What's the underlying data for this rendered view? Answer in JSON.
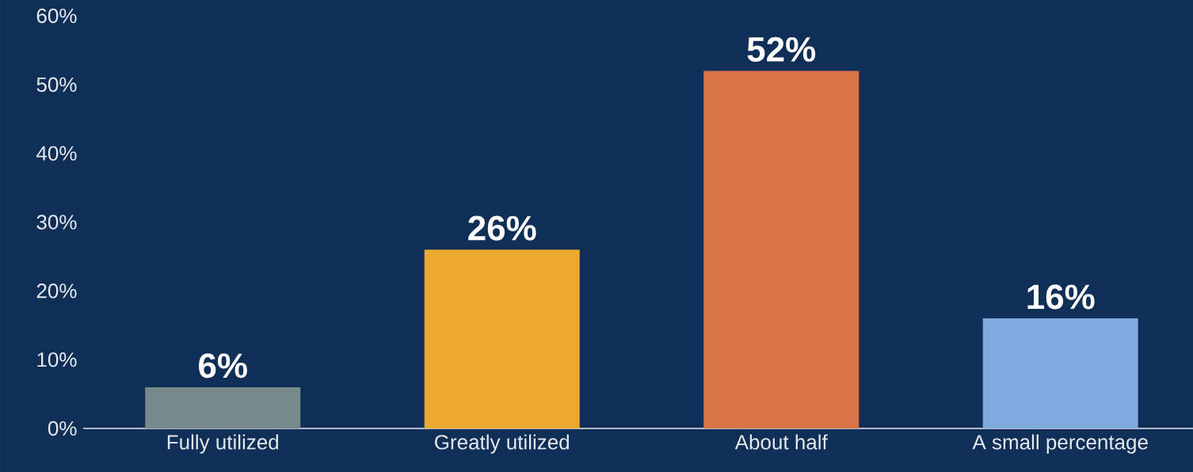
{
  "chart_data": {
    "type": "bar",
    "categories": [
      "Fully utilized",
      "Greatly utilized",
      "About half",
      "A small percentage"
    ],
    "values": [
      6,
      26,
      52,
      16
    ],
    "colors": [
      "#778a8b",
      "#eba92f",
      "#d87447",
      "#7eaadf"
    ],
    "value_labels": [
      "6%",
      "26%",
      "52%",
      "16%"
    ],
    "ylim": [
      0,
      60
    ],
    "yticks": [
      {
        "value": 0,
        "label": "0%"
      },
      {
        "value": 10,
        "label": "10%"
      },
      {
        "value": 20,
        "label": "20%"
      },
      {
        "value": 30,
        "label": "30%"
      },
      {
        "value": 40,
        "label": "40%"
      },
      {
        "value": 50,
        "label": "50%"
      },
      {
        "value": 60,
        "label": "60%"
      }
    ],
    "grid": false
  }
}
